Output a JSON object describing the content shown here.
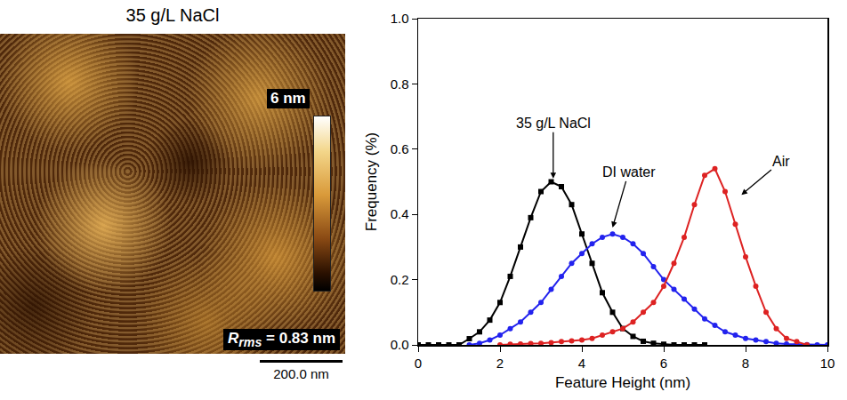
{
  "image_panel": {
    "title": "35 g/L NaCl",
    "colorbar_label": "6 nm",
    "roughness": {
      "symbol": "R",
      "subscript": "rms",
      "text": " = 0.83 nm"
    },
    "scale_bar": "200.0 nm"
  },
  "chart_data": {
    "type": "line",
    "x_label": "Feature Height (nm)",
    "y_label": "Frequency (%)",
    "x": [
      0,
      0.25,
      0.5,
      0.75,
      1.0,
      1.25,
      1.5,
      1.75,
      2.0,
      2.25,
      2.5,
      2.75,
      3.0,
      3.25,
      3.5,
      3.75,
      4.0,
      4.25,
      4.5,
      4.75,
      5.0,
      5.25,
      5.5,
      5.75,
      6.0,
      6.25,
      6.5,
      6.75,
      7.0,
      7.25,
      7.5,
      7.75,
      8.0,
      8.25,
      8.5,
      8.75,
      9.0,
      9.25,
      9.5,
      9.75,
      10.0
    ],
    "series": [
      {
        "name": "35 g/L NaCl",
        "color": "#000000",
        "marker": "square",
        "line_style": "solid",
        "values": [
          0,
          0,
          0,
          0,
          0,
          0.019,
          0.04,
          0.076,
          0.13,
          0.21,
          0.3,
          0.39,
          0.47,
          0.5,
          0.485,
          0.43,
          0.34,
          0.25,
          0.16,
          0.1,
          0.05,
          0.026,
          0.011,
          0.005,
          0.002,
          0,
          0,
          0,
          0,
          null,
          null,
          null,
          null,
          null,
          null,
          null,
          null,
          null,
          null,
          null,
          null
        ]
      },
      {
        "name": "DI water",
        "color": "#2222ee",
        "marker": "circle",
        "line_style": "solid",
        "values": [
          null,
          null,
          null,
          null,
          null,
          0,
          0.005,
          0.015,
          0.03,
          0.05,
          0.07,
          0.1,
          0.13,
          0.17,
          0.21,
          0.25,
          0.28,
          0.31,
          0.33,
          0.34,
          0.33,
          0.31,
          0.28,
          0.24,
          0.2,
          0.17,
          0.14,
          0.11,
          0.08,
          0.06,
          0.04,
          0.03,
          0.02,
          0.015,
          0.01,
          0.005,
          0.003,
          0.002,
          0.001,
          0,
          0
        ]
      },
      {
        "name": "Air",
        "color": "#dd2222",
        "marker": "circle",
        "line_style": "solid",
        "values": [
          null,
          null,
          null,
          null,
          null,
          null,
          null,
          null,
          0,
          0.002,
          0.003,
          0.004,
          0.005,
          0.007,
          0.01,
          0.012,
          0.015,
          0.02,
          0.03,
          0.04,
          0.05,
          0.07,
          0.1,
          0.13,
          0.18,
          0.25,
          0.33,
          0.43,
          0.52,
          0.54,
          0.47,
          0.37,
          0.27,
          0.18,
          0.1,
          0.05,
          0.02,
          0.01,
          0,
          null,
          null
        ]
      }
    ],
    "annotations": [
      {
        "text": "35 g/L NaCl",
        "x": 3.3,
        "y": 0.51
      },
      {
        "text": "DI water",
        "x": 4.75,
        "y": 0.36
      },
      {
        "text": "Air",
        "x": 7.9,
        "y": 0.46
      }
    ],
    "xlim": [
      0,
      10
    ],
    "xticks": [
      0,
      2,
      4,
      6,
      8,
      10
    ],
    "ylim": [
      0,
      1.0
    ],
    "yticks": [
      {
        "value": 0,
        "label": "0.0"
      },
      {
        "value": 0.2,
        "label": "0.2"
      },
      {
        "value": 0.4,
        "label": "0.4"
      },
      {
        "value": 0.6,
        "label": "0.6"
      },
      {
        "value": 0.8,
        "label": "0.8"
      },
      {
        "value": 1.0,
        "label": "1.0"
      }
    ],
    "grid": false,
    "legend": false
  }
}
